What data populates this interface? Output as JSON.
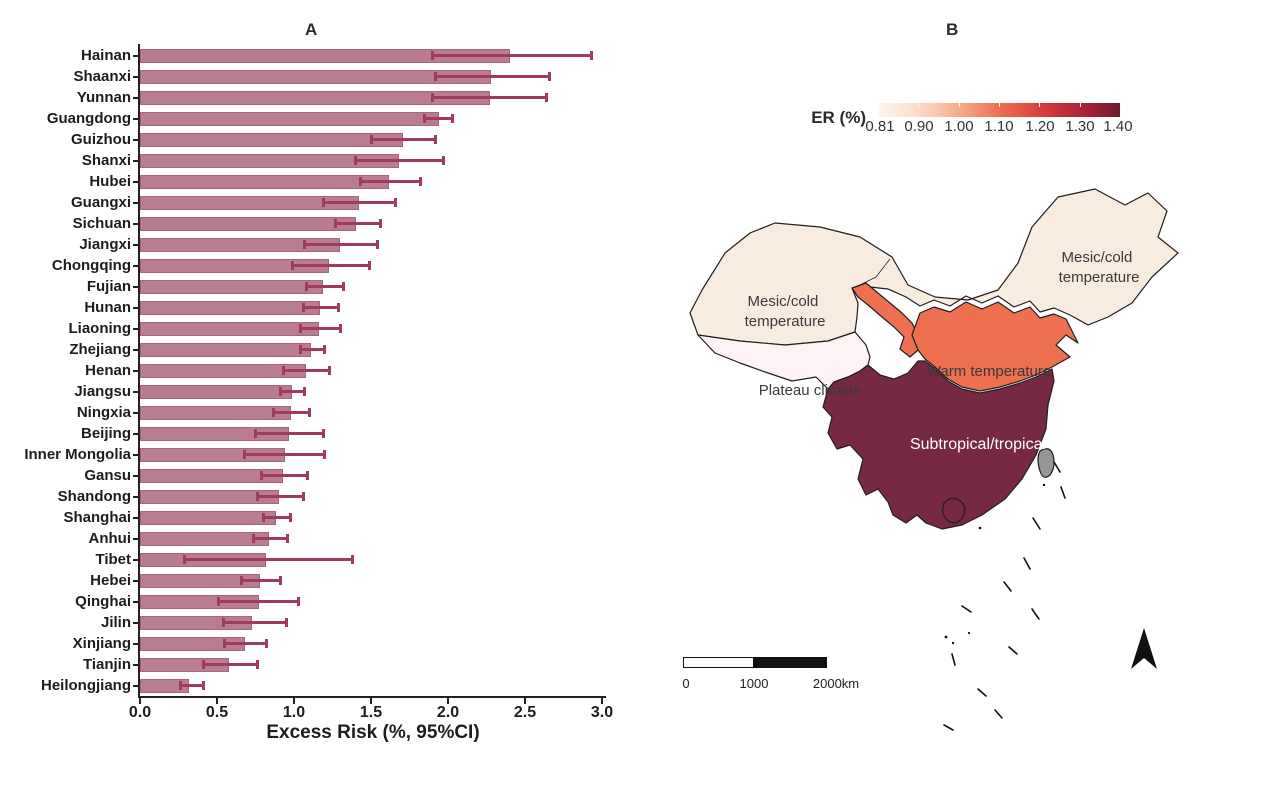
{
  "panel_a": {
    "title": "A",
    "xlabel": "Excess Risk (%, 95%CI)"
  },
  "panel_b": {
    "title": "B",
    "legend": {
      "title": "ER (%)",
      "ticks": [
        "0.81",
        "0.90",
        "1.00",
        "1.10",
        "1.20",
        "1.30",
        "1.40"
      ],
      "gradient": [
        "#fff6ee",
        "#fce3d3",
        "#f9c6ab",
        "#f49c7c",
        "#ee7052",
        "#de4b3f",
        "#c52f39",
        "#a02138",
        "#671c30"
      ]
    },
    "map_labels": {
      "nw": [
        "Mesic/cold",
        "temperature"
      ],
      "ne": [
        "Mesic/cold",
        "temperature"
      ],
      "plateau": [
        "Plateau climate"
      ],
      "warm": [
        "Warm temperature"
      ],
      "subtropical": [
        "Subtropical/tropical"
      ]
    },
    "colors": {
      "mesic_cold": "#f8ece1",
      "plateau": "#fdf3f5",
      "warm": "#ef6f51",
      "subtropical": "#762941",
      "gray_region": "#969696",
      "border": "#1f1f1f"
    },
    "scale_bar": {
      "tick_labels": [
        "0",
        "1000",
        "2000km"
      ]
    }
  },
  "chart_data": [
    {
      "type": "bar",
      "title": "A",
      "orientation": "horizontal",
      "xlabel": "Excess Risk (%, 95%CI)",
      "xlim": [
        0,
        3.0
      ],
      "x_ticks": [
        "0.0",
        "0.5",
        "1.0",
        "1.5",
        "2.0",
        "2.5",
        "3.0"
      ],
      "bar_color": "#b97c92",
      "error_color": "#a03a5e",
      "categories": [
        "Hainan",
        "Shaanxi",
        "Yunnan",
        "Guangdong",
        "Guizhou",
        "Shanxi",
        "Hubei",
        "Guangxi",
        "Sichuan",
        "Jiangxi",
        "Chongqing",
        "Fujian",
        "Hunan",
        "Liaoning",
        "Zhejiang",
        "Henan",
        "Jiangsu",
        "Ningxia",
        "Beijing",
        "Inner Mongolia",
        "Gansu",
        "Shandong",
        "Shanghai",
        "Anhui",
        "Tibet",
        "Hebei",
        "Qinghai",
        "Jilin",
        "Xinjiang",
        "Tianjin",
        "Heilongjiang"
      ],
      "values": [
        2.4,
        2.28,
        2.27,
        1.94,
        1.71,
        1.68,
        1.62,
        1.42,
        1.4,
        1.3,
        1.23,
        1.19,
        1.17,
        1.16,
        1.11,
        1.08,
        0.99,
        0.98,
        0.97,
        0.94,
        0.93,
        0.9,
        0.88,
        0.84,
        0.82,
        0.78,
        0.77,
        0.73,
        0.68,
        0.58,
        0.32
      ],
      "ci_low": [
        1.9,
        1.92,
        1.9,
        1.85,
        1.5,
        1.4,
        1.43,
        1.19,
        1.27,
        1.07,
        0.99,
        1.08,
        1.06,
        1.04,
        1.04,
        0.93,
        0.91,
        0.87,
        0.75,
        0.68,
        0.79,
        0.76,
        0.8,
        0.74,
        0.29,
        0.66,
        0.51,
        0.54,
        0.55,
        0.41,
        0.26
      ],
      "ci_high": [
        2.93,
        2.66,
        2.64,
        2.03,
        1.92,
        1.97,
        1.82,
        1.66,
        1.56,
        1.54,
        1.49,
        1.32,
        1.29,
        1.3,
        1.2,
        1.23,
        1.07,
        1.1,
        1.19,
        1.2,
        1.09,
        1.06,
        0.98,
        0.96,
        1.38,
        0.91,
        1.03,
        0.95,
        0.82,
        0.76,
        0.41
      ]
    },
    {
      "type": "choropleth",
      "title": "B",
      "legend_title": "ER (%)",
      "legend_ticks": [
        0.81,
        0.9,
        1.0,
        1.1,
        1.2,
        1.3,
        1.4
      ],
      "zones": [
        {
          "label": "Mesic/cold temperature",
          "color": "#f8ece1"
        },
        {
          "label": "Plateau climate",
          "color": "#fdf3f5"
        },
        {
          "label": "Warm temperature",
          "color": "#ef6f51"
        },
        {
          "label": "Subtropical/tropical",
          "color": "#762941"
        }
      ],
      "scale_bar_labels": [
        "0",
        "1000",
        "2000km"
      ]
    }
  ]
}
